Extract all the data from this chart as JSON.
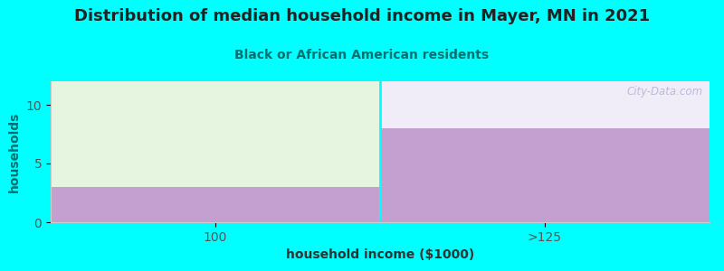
{
  "title": "Distribution of median household income in Mayer, MN in 2021",
  "subtitle": "Black or African American residents",
  "xlabel": "household income ($1000)",
  "ylabel": "households",
  "background_color": "#00FFFF",
  "plot_bg_color": "#FFFFFF",
  "bar_categories": [
    "100",
    ">125"
  ],
  "bar_values": [
    3,
    8
  ],
  "ylim_max": 12,
  "bar_color": "#C4A0D0",
  "bar_top_color_left": "#E5F5DF",
  "bar_top_color_right": "#F0EDF8",
  "yticks": [
    0,
    5,
    10
  ],
  "grid_color": "#DDDDDD",
  "watermark": "City-Data.com",
  "title_fontsize": 13,
  "subtitle_fontsize": 10,
  "axis_label_fontsize": 10,
  "title_color": "#222222",
  "subtitle_color": "#007070",
  "ylabel_color": "#007070",
  "xlabel_color": "#333333",
  "tick_color": "#555555",
  "divider_color": "#00FFFF",
  "spine_color": "#CCCCCC"
}
